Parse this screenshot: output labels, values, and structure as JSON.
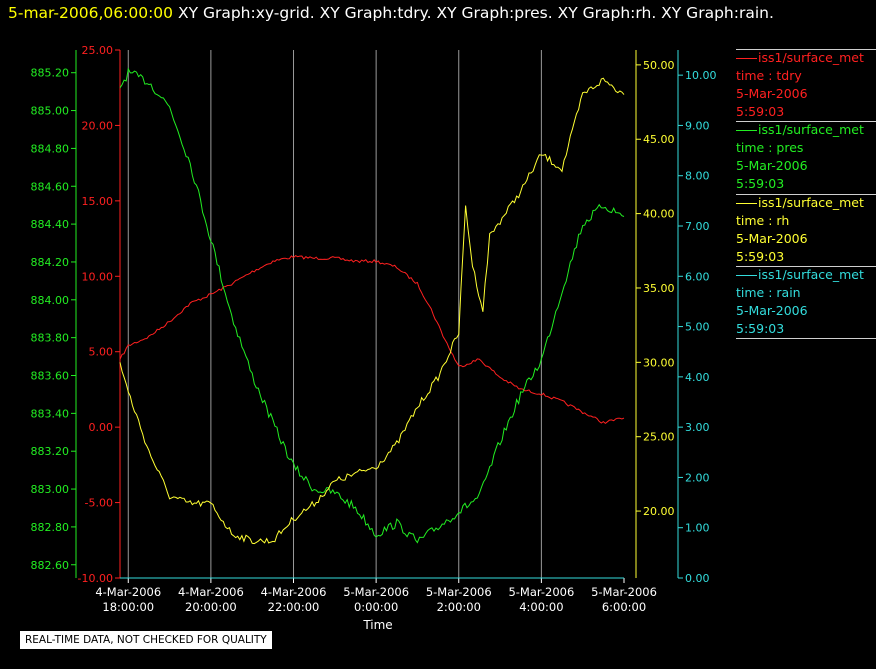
{
  "header": {
    "timestamp": "5-mar-2006,06:00:00",
    "graphs": "XY Graph:xy-grid.  XY Graph:tdry.  XY Graph:pres.  XY Graph:rh.  XY Graph:rain."
  },
  "legend": [
    {
      "source": "iss1/surface_met",
      "var": "time : tdry",
      "date": "5-Mar-2006",
      "time": "5:59:03",
      "color": "#ff2020"
    },
    {
      "source": "iss1/surface_met",
      "var": "time : pres",
      "date": "5-Mar-2006",
      "time": "5:59:03",
      "color": "#22ee22"
    },
    {
      "source": "iss1/surface_met",
      "var": "time : rh",
      "date": "5-Mar-2006",
      "time": "5:59:03",
      "color": "#ffff33"
    },
    {
      "source": "iss1/surface_met",
      "var": "time : rain",
      "date": "5-Mar-2006",
      "time": "5:59:03",
      "color": "#33dddd"
    }
  ],
  "notice": "REAL-TIME DATA, NOT CHECKED FOR QUALITY",
  "chart_data": {
    "type": "line",
    "xlabel": "Time",
    "xlim": [
      "2006-03-04 17:48",
      "2006-03-05 06:00"
    ],
    "x_ticks": [
      {
        "date": "4-Mar-2006",
        "time": "18:00:00"
      },
      {
        "date": "4-Mar-2006",
        "time": "20:00:00"
      },
      {
        "date": "4-Mar-2006",
        "time": "22:00:00"
      },
      {
        "date": "5-Mar-2006",
        "time": "0:00:00"
      },
      {
        "date": "5-Mar-2006",
        "time": "2:00:00"
      },
      {
        "date": "5-Mar-2006",
        "time": "4:00:00"
      },
      {
        "date": "5-Mar-2006",
        "time": "6:00:00"
      }
    ],
    "grid": "vertical",
    "axes": {
      "tdry": {
        "color": "#ff2020",
        "ylim": [
          -10,
          25
        ],
        "ticks": [
          "-10.00",
          "-5.00",
          "0.00",
          "5.00",
          "10.00",
          "15.00",
          "20.00",
          "25.00"
        ]
      },
      "pres": {
        "color": "#22ee22",
        "ylim": [
          882.53,
          885.32
        ],
        "ticks": [
          "882.60",
          "882.80",
          "883.00",
          "883.20",
          "883.40",
          "883.60",
          "883.80",
          "884.00",
          "884.20",
          "884.40",
          "884.60",
          "884.80",
          "885.00",
          "885.20"
        ]
      },
      "rh": {
        "color": "#ffff33",
        "ylim": [
          15.5,
          51
        ],
        "ticks": [
          "20.00",
          "25.00",
          "30.00",
          "35.00",
          "40.00",
          "45.00",
          "50.00"
        ]
      },
      "rain": {
        "color": "#33dddd",
        "ylim": [
          0,
          10.5
        ],
        "ticks": [
          "0.00",
          "1.00",
          "2.00",
          "3.00",
          "4.00",
          "5.00",
          "6.00",
          "7.00",
          "8.00",
          "9.00",
          "10.00"
        ]
      }
    },
    "series": [
      {
        "name": "tdry",
        "axis": "tdry",
        "color": "#ff2020",
        "x": [
          "2006-03-04 17:48",
          "2006-03-04 18:00",
          "2006-03-04 18:30",
          "2006-03-04 19:00",
          "2006-03-04 19:30",
          "2006-03-04 20:00",
          "2006-03-04 20:30",
          "2006-03-04 21:00",
          "2006-03-04 21:30",
          "2006-03-04 22:00",
          "2006-03-04 22:30",
          "2006-03-04 23:00",
          "2006-03-04 23:30",
          "2006-03-05 00:00",
          "2006-03-05 00:30",
          "2006-03-05 01:00",
          "2006-03-05 01:20",
          "2006-03-05 01:40",
          "2006-03-05 02:00",
          "2006-03-05 02:30",
          "2006-03-05 03:00",
          "2006-03-05 03:30",
          "2006-03-05 04:00",
          "2006-03-05 04:30",
          "2006-03-05 05:00",
          "2006-03-05 05:30",
          "2006-03-05 06:00"
        ],
        "values": [
          4.5,
          5.4,
          6.0,
          7.0,
          8.2,
          8.8,
          9.5,
          10.3,
          11.0,
          11.3,
          11.2,
          11.2,
          11.0,
          11.0,
          10.6,
          9.5,
          7.8,
          5.8,
          4.0,
          4.5,
          3.3,
          2.5,
          2.2,
          1.7,
          1.0,
          0.3,
          0.6
        ]
      },
      {
        "name": "pres",
        "axis": "pres",
        "color": "#22ee22",
        "x": [
          "2006-03-04 17:48",
          "2006-03-04 18:00",
          "2006-03-04 18:30",
          "2006-03-04 19:00",
          "2006-03-04 19:30",
          "2006-03-04 20:00",
          "2006-03-04 20:30",
          "2006-03-04 21:00",
          "2006-03-04 21:30",
          "2006-03-04 22:00",
          "2006-03-04 22:30",
          "2006-03-04 23:00",
          "2006-03-04 23:30",
          "2006-03-05 00:00",
          "2006-03-05 00:30",
          "2006-03-05 01:00",
          "2006-03-05 01:30",
          "2006-03-05 02:00",
          "2006-03-05 02:30",
          "2006-03-05 03:00",
          "2006-03-05 03:30",
          "2006-03-05 04:00",
          "2006-03-05 04:30",
          "2006-03-05 05:00",
          "2006-03-05 05:30",
          "2006-03-05 06:00"
        ],
        "values": [
          885.12,
          885.2,
          885.15,
          885.02,
          884.72,
          884.32,
          883.92,
          883.6,
          883.35,
          883.12,
          883.0,
          882.98,
          882.9,
          882.76,
          882.82,
          882.72,
          882.8,
          882.88,
          882.96,
          883.25,
          883.5,
          883.68,
          884.05,
          884.4,
          884.5,
          884.44
        ]
      },
      {
        "name": "rh",
        "axis": "rh",
        "color": "#ffff33",
        "x": [
          "2006-03-04 17:48",
          "2006-03-04 18:00",
          "2006-03-04 18:30",
          "2006-03-04 19:00",
          "2006-03-04 19:30",
          "2006-03-04 20:00",
          "2006-03-04 20:30",
          "2006-03-04 21:00",
          "2006-03-04 21:30",
          "2006-03-04 22:00",
          "2006-03-04 22:30",
          "2006-03-04 23:00",
          "2006-03-04 23:30",
          "2006-03-05 00:00",
          "2006-03-05 00:30",
          "2006-03-05 01:00",
          "2006-03-05 01:30",
          "2006-03-05 02:00",
          "2006-03-05 02:10",
          "2006-03-05 02:20",
          "2006-03-05 02:35",
          "2006-03-05 02:45",
          "2006-03-05 03:00",
          "2006-03-05 03:30",
          "2006-03-05 04:00",
          "2006-03-05 04:30",
          "2006-03-05 05:00",
          "2006-03-05 05:30",
          "2006-03-05 06:00"
        ],
        "values": [
          30.0,
          28.0,
          24.0,
          21.0,
          20.5,
          20.5,
          18.5,
          18.0,
          18.0,
          19.5,
          20.5,
          22.0,
          22.5,
          23.0,
          24.5,
          27.0,
          29.0,
          32.0,
          40.5,
          36.5,
          33.5,
          38.5,
          39.5,
          41.5,
          44.0,
          43.0,
          48.0,
          49.0,
          48.0
        ]
      },
      {
        "name": "rain",
        "axis": "rain",
        "color": "#33dddd",
        "x": [
          "2006-03-04 17:48",
          "2006-03-05 06:00"
        ],
        "values": [
          0,
          0
        ]
      }
    ]
  }
}
